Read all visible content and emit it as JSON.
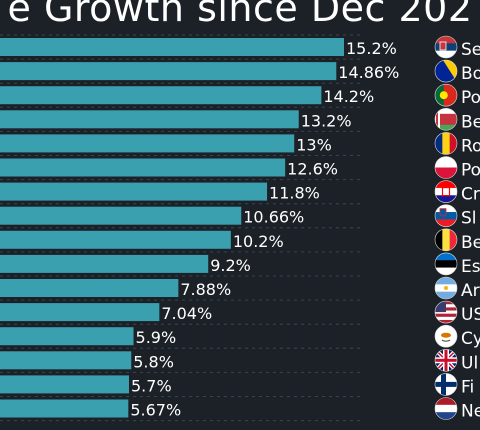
{
  "title": "e Growth since Dec 202",
  "colors": {
    "background": "#1c2127",
    "bar": "#3aa0b0",
    "text": "#ffffff",
    "grid": "#3a4450"
  },
  "chart_data": {
    "type": "bar",
    "orientation": "horizontal",
    "title": "e Growth since Dec 202",
    "categories": [
      "Se",
      "Bo",
      "Po",
      "Be",
      "Ro",
      "Po",
      "Cr",
      "Sl",
      "Be",
      "Es",
      "Ar",
      "US",
      "Cy",
      "Ul",
      "Fi",
      "Ne"
    ],
    "values": [
      15.2,
      14.86,
      14.2,
      13.2,
      13,
      12.6,
      11.8,
      10.66,
      10.2,
      9.2,
      7.88,
      7.04,
      5.9,
      5.8,
      5.7,
      5.67
    ],
    "value_labels": [
      "15.2%",
      "14.86%",
      "14.2%",
      "13.2%",
      "13%",
      "12.6%",
      "11.8%",
      "10.66%",
      "10.2%",
      "9.2%",
      "7.88%",
      "7.04%",
      "5.9%",
      "5.8%",
      "5.7%",
      "5.67%"
    ],
    "flag_icons": [
      "serbia-flag-icon",
      "bosnia-flag-icon",
      "portugal-flag-icon",
      "belarus-flag-icon",
      "romania-flag-icon",
      "poland-flag-icon",
      "croatia-flag-icon",
      "slovenia-flag-icon",
      "belgium-flag-icon",
      "estonia-flag-icon",
      "argentina-flag-icon",
      "usa-flag-icon",
      "cyprus-flag-icon",
      "uk-flag-icon",
      "finland-flag-icon",
      "netherlands-flag-icon"
    ],
    "grid": true,
    "legend": "none"
  }
}
